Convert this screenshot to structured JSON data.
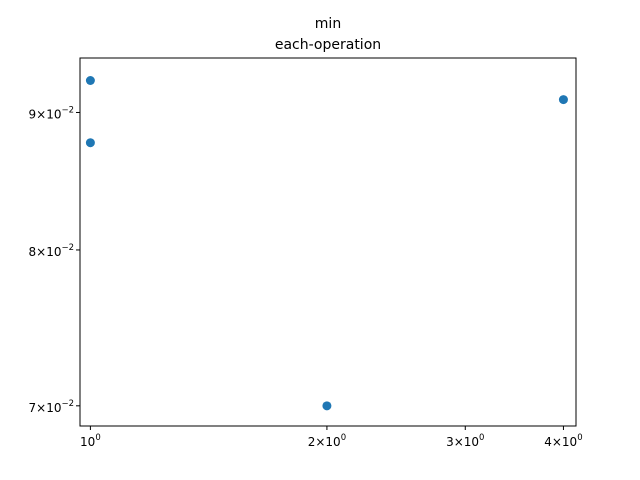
{
  "chart_data": {
    "type": "scatter",
    "title": "min",
    "subtitle": "each-operation",
    "xscale": "log",
    "yscale": "log",
    "xlim": [
      0.97,
      4.15
    ],
    "ylim": [
      0.0688,
      0.0943
    ],
    "x_ticks": [
      {
        "value": 1,
        "base": "10",
        "exp": "0"
      },
      {
        "value": 2,
        "base": "2×10",
        "exp": "0"
      },
      {
        "value": 3,
        "base": "3×10",
        "exp": "0"
      },
      {
        "value": 4,
        "base": "4×10",
        "exp": "0"
      }
    ],
    "y_ticks": [
      {
        "value": 0.07,
        "base": "7×10",
        "exp": "−2"
      },
      {
        "value": 0.08,
        "base": "8×10",
        "exp": "−2"
      },
      {
        "value": 0.09,
        "base": "9×10",
        "exp": "−2"
      }
    ],
    "points": [
      {
        "x": 1,
        "y": 0.0925
      },
      {
        "x": 1,
        "y": 0.0877
      },
      {
        "x": 2,
        "y": 0.07
      },
      {
        "x": 4,
        "y": 0.091
      }
    ],
    "grid": false,
    "color": "#1f77b4"
  }
}
